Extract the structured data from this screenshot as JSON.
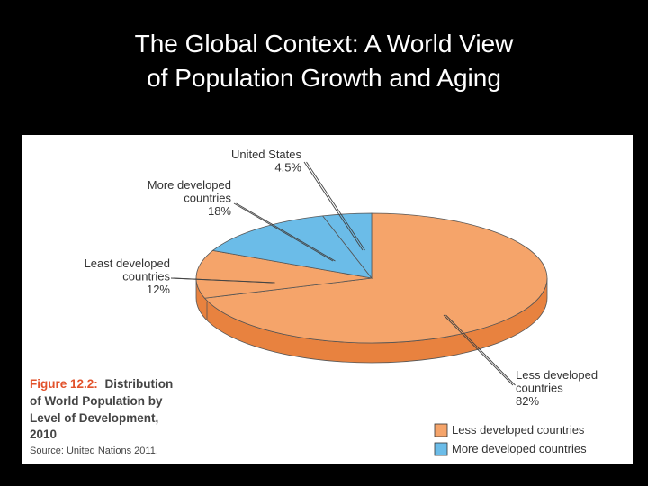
{
  "slide": {
    "title_line1": "The Global Context: A World View",
    "title_line2": "of Population Growth and Aging"
  },
  "figure": {
    "caption_label": "Figure 12.2:",
    "caption_line1_rest": "Distribution",
    "caption_line2": "of World Population by",
    "caption_line3": "Level of Development,",
    "caption_line4": "2010",
    "source": "Source: United Nations 2011."
  },
  "chart_data": {
    "type": "pie",
    "style": "3d",
    "slices": [
      {
        "label_lines": [
          "Less developed",
          "countries"
        ],
        "value": 82,
        "value_label": "82%",
        "group": "Less developed countries"
      },
      {
        "label_lines": [
          "Least developed",
          "countries"
        ],
        "value": 12,
        "value_label": "12%",
        "group": "Less developed countries"
      },
      {
        "label_lines": [
          "More developed",
          "countries"
        ],
        "value": 18,
        "value_label": "18%",
        "group": "More developed countries"
      },
      {
        "label_lines": [
          "United States"
        ],
        "value": 4.5,
        "value_label": "4.5%",
        "group": "More developed countries"
      }
    ],
    "legend": [
      {
        "label": "Less developed countries",
        "color": "#f5a46a"
      },
      {
        "label": "More developed countries",
        "color": "#6bbce8"
      }
    ],
    "legend_position": "bottom-right"
  },
  "colors": {
    "less_top": "#f5a46a",
    "less_side": "#e8823f",
    "more_top": "#6bbce8",
    "more_side": "#4f9fcf",
    "caption_accent": "#e2522b",
    "caption_text": "#444444"
  }
}
